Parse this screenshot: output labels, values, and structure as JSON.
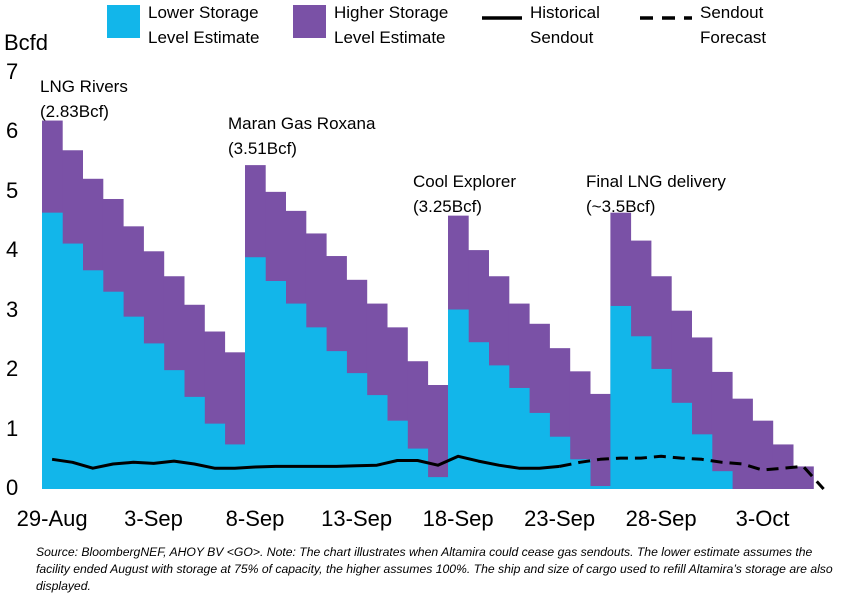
{
  "chart_data": {
    "type": "step-area",
    "y_axis_label": "Bcfd",
    "categories": [
      "29-Aug",
      null,
      null,
      null,
      null,
      "3-Sep",
      null,
      null,
      null,
      null,
      "8-Sep",
      null,
      null,
      null,
      null,
      "13-Sep",
      null,
      null,
      null,
      null,
      "18-Sep",
      null,
      null,
      null,
      null,
      "23-Sep",
      null,
      null,
      null,
      null,
      "28-Sep",
      null,
      null,
      null,
      null,
      "3-Oct",
      null,
      null,
      null
    ],
    "ylim": [
      0,
      7
    ],
    "yticks": [
      0,
      1,
      2,
      3,
      4,
      5,
      6,
      7
    ],
    "grid": false,
    "legend": "top",
    "series": [
      {
        "name": "Higher Storage Level Estimate",
        "color": "#7a51a6",
        "kind": "area",
        "values": [
          6.2,
          5.7,
          5.22,
          4.88,
          4.42,
          4.0,
          3.58,
          3.1,
          2.65,
          2.3,
          5.45,
          5.0,
          4.68,
          4.3,
          3.92,
          3.52,
          3.12,
          2.72,
          2.15,
          1.75,
          4.6,
          4.02,
          3.58,
          3.12,
          2.78,
          2.37,
          1.98,
          1.6,
          4.65,
          4.18,
          3.58,
          3.0,
          2.55,
          1.97,
          1.52,
          1.15,
          0.75,
          0.38,
          null
        ]
      },
      {
        "name": "Lower Storage Level Estimate",
        "color": "#12b6ea",
        "kind": "area",
        "values": [
          4.65,
          4.13,
          3.68,
          3.32,
          2.9,
          2.45,
          2.0,
          1.55,
          1.1,
          0.75,
          3.9,
          3.5,
          3.12,
          2.72,
          2.32,
          1.95,
          1.58,
          1.15,
          0.68,
          0.2,
          3.02,
          2.47,
          2.08,
          1.7,
          1.28,
          0.88,
          0.5,
          0.05,
          3.08,
          2.57,
          2.02,
          1.45,
          0.92,
          0.3,
          0,
          0,
          0,
          0,
          null
        ]
      },
      {
        "name": "Historical Sendout",
        "color": "#000000",
        "kind": "line",
        "dash": false,
        "values": [
          0.5,
          0.45,
          0.35,
          0.42,
          0.45,
          0.43,
          0.47,
          0.42,
          0.35,
          0.35,
          0.37,
          0.38,
          0.38,
          0.38,
          0.38,
          0.39,
          0.4,
          0.48,
          0.48,
          0.4,
          0.55,
          0.47,
          0.4,
          0.35,
          0.35,
          0.38,
          null,
          null,
          null,
          null,
          null,
          null,
          null,
          null,
          null,
          null,
          null,
          null,
          null
        ]
      },
      {
        "name": "Sendout Forecast",
        "color": "#000000",
        "kind": "line",
        "dash": true,
        "values": [
          null,
          null,
          null,
          null,
          null,
          null,
          null,
          null,
          null,
          null,
          null,
          null,
          null,
          null,
          null,
          null,
          null,
          null,
          null,
          null,
          null,
          null,
          null,
          null,
          null,
          0.38,
          0.45,
          0.5,
          0.52,
          0.52,
          0.55,
          0.52,
          0.5,
          0.45,
          0.42,
          0.32,
          0.35,
          0.38,
          0.0
        ]
      }
    ],
    "annotations": [
      "LNG Rivers\n(2.83Bcf)",
      "Maran Gas Roxana\n(3.51Bcf)",
      "Cool Explorer\n(3.25Bcf)",
      "Final LNG delivery\n(~3.5Bcf)"
    ],
    "source": "Source: BloombergNEF, AHOY BV <GO>. Note: The chart illustrates when Altamira could cease gas sendouts. The lower estimate assumes the facility ended August with storage at 75% of capacity, the higher assumes 100%. The ship and size of cargo used to refill Altamira’s storage are also displayed."
  }
}
